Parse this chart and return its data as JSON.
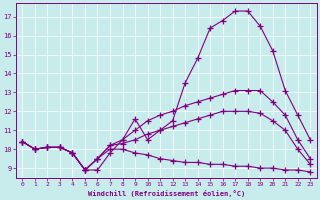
{
  "xlabel": "Windchill (Refroidissement éolien,°C)",
  "bg_color": "#c8ecec",
  "line_color": "#800080",
  "grid_color": "#ffffff",
  "xlim": [
    -0.5,
    23.5
  ],
  "ylim": [
    8.5,
    17.7
  ],
  "xticks": [
    0,
    1,
    2,
    3,
    4,
    5,
    6,
    7,
    8,
    9,
    10,
    11,
    12,
    13,
    14,
    15,
    16,
    17,
    18,
    19,
    20,
    21,
    22,
    23
  ],
  "yticks": [
    9,
    10,
    11,
    12,
    13,
    14,
    15,
    16,
    17
  ],
  "line1_x": [
    0,
    1,
    2,
    3,
    4,
    5,
    6,
    7,
    8,
    9,
    10,
    11,
    12,
    13,
    14,
    15,
    16,
    17,
    18,
    19,
    20,
    21,
    22,
    23
  ],
  "line1_y": [
    10.4,
    10.0,
    10.1,
    10.1,
    9.8,
    8.9,
    8.9,
    9.8,
    10.5,
    11.6,
    10.5,
    11.0,
    11.5,
    13.5,
    14.8,
    16.4,
    16.8,
    17.3,
    17.3,
    16.5,
    15.2,
    13.1,
    11.8,
    10.5
  ],
  "line2_x": [
    0,
    1,
    2,
    3,
    4,
    5,
    6,
    7,
    8,
    9,
    10,
    11,
    12,
    13,
    14,
    15,
    16,
    17,
    18,
    19,
    20,
    21,
    22,
    23
  ],
  "line2_y": [
    10.4,
    10.0,
    10.1,
    10.1,
    9.8,
    8.9,
    9.5,
    10.2,
    10.5,
    11.0,
    11.5,
    11.8,
    12.0,
    12.3,
    12.5,
    12.7,
    12.9,
    13.1,
    13.1,
    13.1,
    12.5,
    11.8,
    10.5,
    9.5
  ],
  "line3_x": [
    0,
    1,
    2,
    3,
    4,
    5,
    6,
    7,
    8,
    9,
    10,
    11,
    12,
    13,
    14,
    15,
    16,
    17,
    18,
    19,
    20,
    21,
    22,
    23
  ],
  "line3_y": [
    10.4,
    10.0,
    10.1,
    10.1,
    9.8,
    8.9,
    9.5,
    10.2,
    10.3,
    10.5,
    10.8,
    11.0,
    11.2,
    11.4,
    11.6,
    11.8,
    12.0,
    12.0,
    12.0,
    11.9,
    11.5,
    11.0,
    10.0,
    9.2
  ],
  "line4_x": [
    0,
    1,
    2,
    3,
    4,
    5,
    6,
    7,
    8,
    9,
    10,
    11,
    12,
    13,
    14,
    15,
    16,
    17,
    18,
    19,
    20,
    21,
    22,
    23
  ],
  "line4_y": [
    10.4,
    10.0,
    10.1,
    10.1,
    9.8,
    8.9,
    9.5,
    10.0,
    10.0,
    9.8,
    9.7,
    9.5,
    9.4,
    9.3,
    9.3,
    9.2,
    9.2,
    9.1,
    9.1,
    9.0,
    9.0,
    8.9,
    8.9,
    8.8
  ]
}
